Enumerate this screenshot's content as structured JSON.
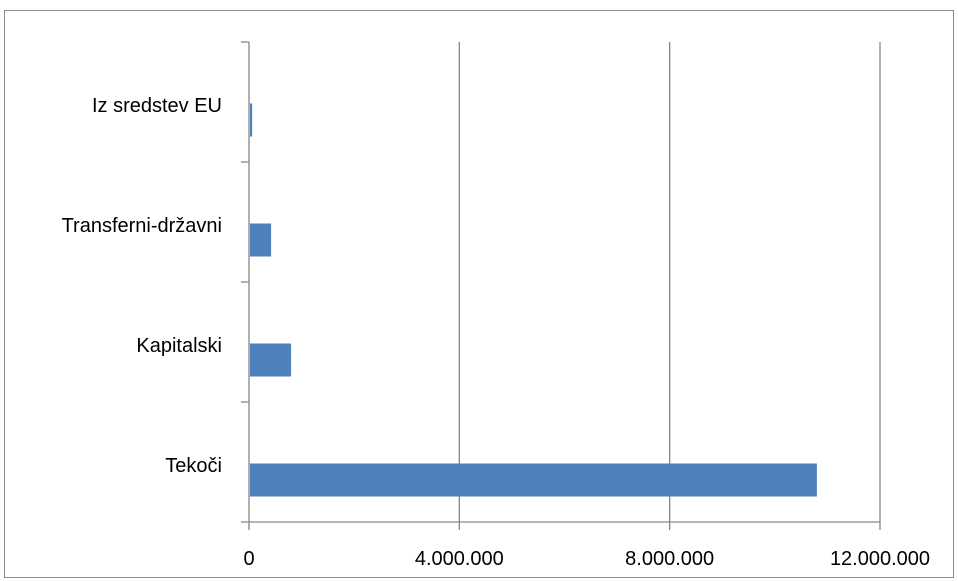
{
  "chart_data": {
    "type": "bar",
    "orientation": "horizontal",
    "categories": [
      "Tekoči",
      "Kapitalski",
      "Transferni-državni",
      "Iz sredstev EU"
    ],
    "values": [
      10800000,
      800000,
      420000,
      60000
    ],
    "xlim": [
      0,
      12000000
    ],
    "xticks": [
      0,
      4000000,
      8000000,
      12000000
    ],
    "xtick_labels": [
      "0",
      "4.000.000",
      "8.000.000",
      "12.000.000"
    ],
    "grid": "vertical",
    "legend": "none",
    "colors": {
      "bar": "#4F81BD",
      "grid": "#868686",
      "axis": "#868686"
    }
  }
}
